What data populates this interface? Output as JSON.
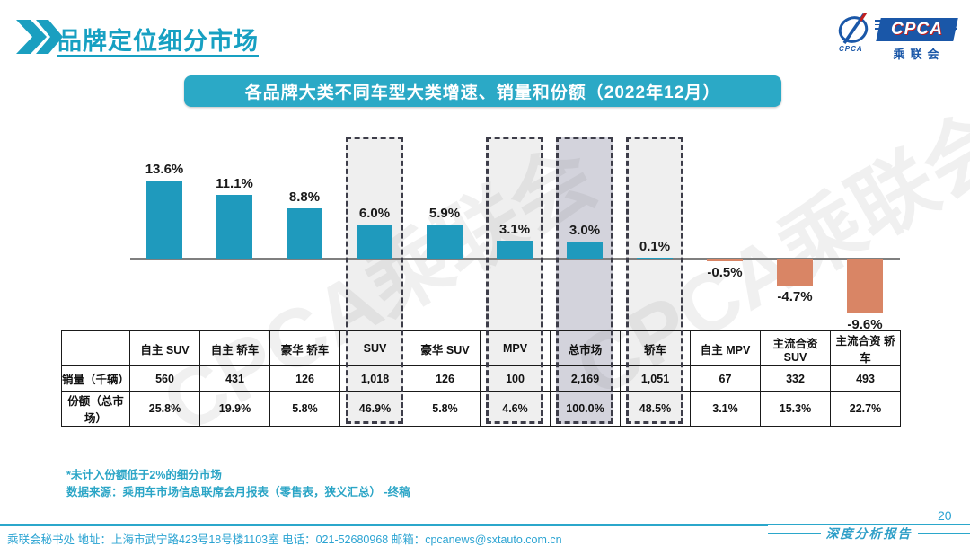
{
  "header": {
    "title": "品牌定位细分市场",
    "logo": {
      "main": "CPCA",
      "sub": "乘联会",
      "swoosh_label": "CPCA"
    }
  },
  "banner": {
    "text": "各品牌大类不同车型大类增速、销量和份额（2022年12月）"
  },
  "chart_data": {
    "type": "bar",
    "title": "各品牌大类不同车型大类增速、销量和份额（2022年12月）",
    "categories": [
      "自主 SUV",
      "自主 轿车",
      "豪华 轿车",
      "SUV",
      "豪华 SUV",
      "MPV",
      "总市场",
      "轿车",
      "自主 MPV",
      "主流合资 SUV",
      "主流合资 轿车"
    ],
    "values": [
      13.6,
      11.1,
      8.8,
      6.0,
      5.9,
      3.1,
      3.0,
      0.1,
      -0.5,
      -4.7,
      -9.6
    ],
    "labels": [
      "13.6%",
      "11.1%",
      "8.8%",
      "6.0%",
      "5.9%",
      "3.1%",
      "3.0%",
      "0.1%",
      "-0.5%",
      "-4.7%",
      "-9.6%"
    ],
    "highlighted": [
      "SUV",
      "MPV",
      "总市场",
      "轿车"
    ],
    "emphasized": "总市场",
    "positive_color": "#1f9abd",
    "negative_color": "#d98565",
    "ylim": [
      -12,
      16
    ],
    "grid": false,
    "legend": false,
    "table": {
      "row_headers": [
        "销量（千辆）",
        "份额（总市场）"
      ],
      "rows": [
        [
          "560",
          "431",
          "126",
          "1,018",
          "126",
          "100",
          "2,169",
          "1,051",
          "67",
          "332",
          "493"
        ],
        [
          "25.8%",
          "19.9%",
          "5.8%",
          "46.9%",
          "5.8%",
          "4.6%",
          "100.0%",
          "48.5%",
          "3.1%",
          "15.3%",
          "22.7%"
        ]
      ]
    }
  },
  "watermark": "CPCA乘联会",
  "notes": {
    "line1": "*未计入份额低于2%的细分市场",
    "line2": "数据来源：乘用车市场信息联席会月报表（零售表，狭义汇总） -终稿"
  },
  "footer": {
    "contact": "乘联会秘书处   地址：上海市武宁路423号18号楼1103室  电话：021-52680968   邮箱：cpcanews@sxtauto.com.cn",
    "page_number": "20",
    "report_label": "深度分析报告"
  }
}
